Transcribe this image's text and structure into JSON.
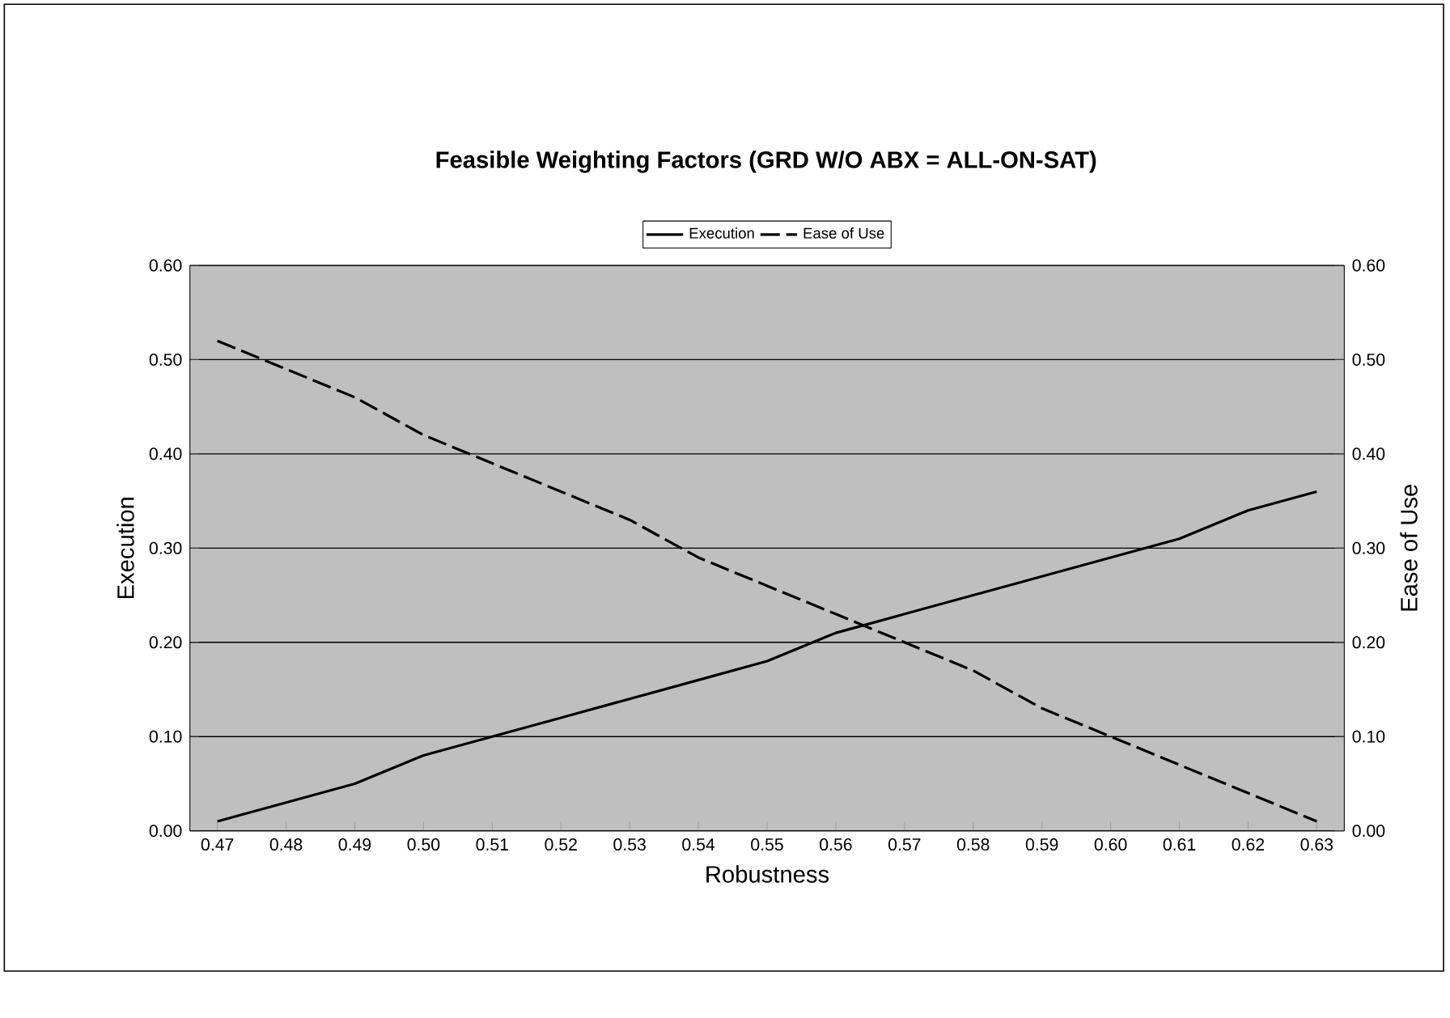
{
  "chart_data": {
    "type": "line",
    "title": "Feasible Weighting Factors (GRD W/O ABX = ALL-ON-SAT)",
    "xlabel": "Robustness",
    "ylabel": "Execution",
    "y2label": "Ease of Use",
    "categories": [
      "0.47",
      "0.48",
      "0.49",
      "0.50",
      "0.51",
      "0.52",
      "0.53",
      "0.54",
      "0.55",
      "0.56",
      "0.57",
      "0.58",
      "0.59",
      "0.60",
      "0.61",
      "0.62",
      "0.63"
    ],
    "series": [
      {
        "name": "Execution",
        "color": "#000000",
        "line_style": "solid",
        "values": [
          0.01,
          0.03,
          0.05,
          0.08,
          0.1,
          0.12,
          0.14,
          0.16,
          0.18,
          0.21,
          0.23,
          0.25,
          0.27,
          0.29,
          0.31,
          0.34,
          0.36
        ]
      },
      {
        "name": "Ease of Use",
        "color": "#000000",
        "line_style": "dashed",
        "axis": "y2",
        "values": [
          0.52,
          0.49,
          0.46,
          0.42,
          0.39,
          0.36,
          0.33,
          0.29,
          0.26,
          0.23,
          0.2,
          0.17,
          0.13,
          0.1,
          0.07,
          0.04,
          0.01
        ]
      }
    ],
    "ylim": [
      0,
      0.6
    ],
    "yticks": [
      {
        "value": 0,
        "label": "0.00"
      },
      {
        "value": 0.1,
        "label": "0.10"
      },
      {
        "value": 0.2,
        "label": "0.20"
      },
      {
        "value": 0.3,
        "label": "0.30"
      },
      {
        "value": 0.4,
        "label": "0.40"
      },
      {
        "value": 0.5,
        "label": "0.50"
      },
      {
        "value": 0.6,
        "label": "0.60"
      }
    ],
    "y2lim": [
      0,
      0.6
    ],
    "y2ticks": [
      {
        "value": 0,
        "label": "0.00"
      },
      {
        "value": 0.1,
        "label": "0.10"
      },
      {
        "value": 0.2,
        "label": "0.20"
      },
      {
        "value": 0.3,
        "label": "0.30"
      },
      {
        "value": 0.4,
        "label": "0.40"
      },
      {
        "value": 0.5,
        "label": "0.50"
      },
      {
        "value": 0.6,
        "label": "0.60"
      }
    ],
    "grid": "y",
    "legend": "top",
    "marker": "none"
  }
}
